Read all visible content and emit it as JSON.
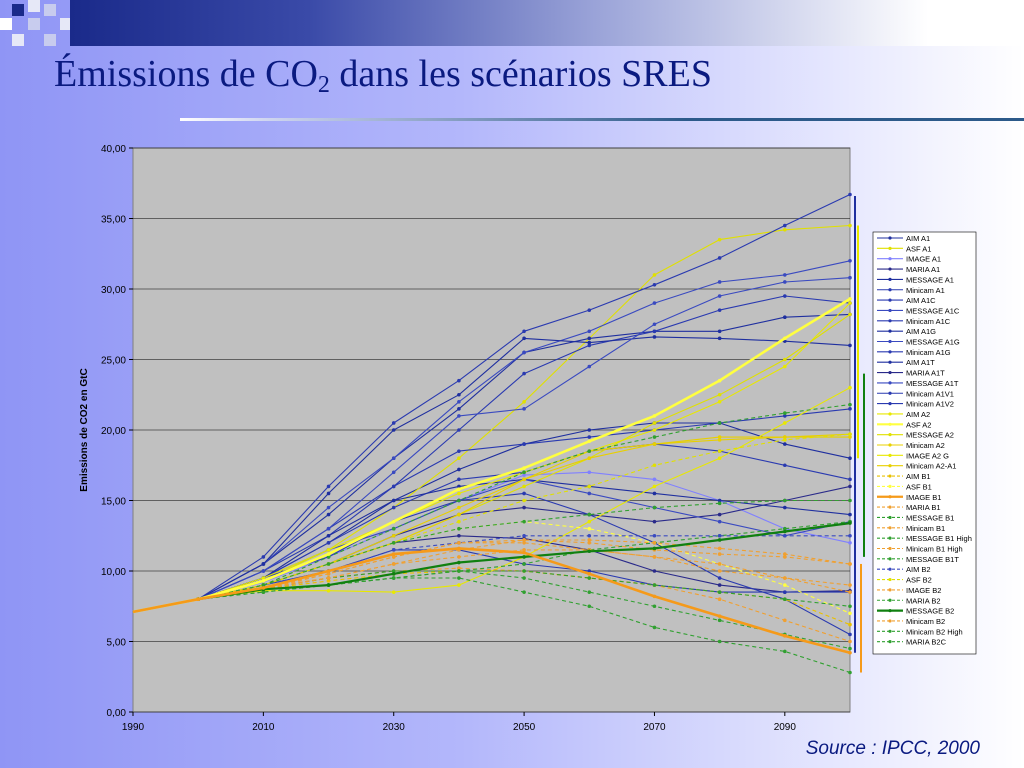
{
  "slide": {
    "title_main": "Émissions de CO",
    "title_sub": "2",
    "title_rest": " dans les scénarios SRES",
    "source": "Source : IPCC, 2000"
  },
  "chart_data": {
    "type": "line",
    "title": "",
    "xlabel": "",
    "ylabel": "Emissions de CO2 en GtC",
    "xlim": [
      1990,
      2100
    ],
    "ylim": [
      0,
      40
    ],
    "x_ticks": [
      "1990",
      "2010",
      "2030",
      "2050",
      "2070",
      "2090"
    ],
    "y_ticks": [
      "0,00",
      "5,00",
      "10,00",
      "15,00",
      "20,00",
      "25,00",
      "30,00",
      "35,00",
      "40,00"
    ],
    "x": [
      1990,
      2000,
      2010,
      2020,
      2030,
      2040,
      2050,
      2060,
      2070,
      2080,
      2090,
      2100
    ],
    "grid": true,
    "legend_position": "right",
    "plot_background": "#c0c0c0",
    "series": [
      {
        "name": "AIM A1",
        "color": "#1f2f9f",
        "dash": "",
        "width": 1.1,
        "values": [
          7.1,
          8.0,
          9.5,
          12.0,
          15.0,
          17.2,
          19.0,
          20.0,
          20.5,
          20.5,
          19.0,
          18.0
        ]
      },
      {
        "name": "ASF A1",
        "color": "#e0e000",
        "dash": "",
        "width": 1.1,
        "values": [
          7.1,
          8.0,
          9.3,
          11.5,
          14.5,
          18.0,
          22.0,
          26.5,
          31.0,
          33.5,
          34.2,
          34.5
        ]
      },
      {
        "name": "IMAGE A1",
        "color": "#8080ff",
        "dash": "",
        "width": 1.1,
        "values": [
          7.1,
          8.0,
          9.2,
          11.0,
          13.0,
          15.0,
          16.8,
          17.0,
          16.5,
          15.0,
          13.0,
          12.0
        ]
      },
      {
        "name": "MARIA A1",
        "color": "#2a2a8a",
        "dash": "",
        "width": 1.1,
        "values": [
          7.1,
          8.0,
          9.0,
          10.5,
          12.5,
          14.0,
          14.5,
          14.0,
          13.5,
          14.0,
          15.0,
          16.0
        ]
      },
      {
        "name": "MESSAGE A1",
        "color": "#1f2f9f",
        "dash": "",
        "width": 1.1,
        "values": [
          7.1,
          8.0,
          10.5,
          14.0,
          18.0,
          21.5,
          25.5,
          26.5,
          27.0,
          27.0,
          28.0,
          28.2
        ]
      },
      {
        "name": "Minicam A1",
        "color": "#2a3ab0",
        "dash": "",
        "width": 1.1,
        "values": [
          7.1,
          8.0,
          10.0,
          13.0,
          16.0,
          18.5,
          19.0,
          19.5,
          20.0,
          20.5,
          21.0,
          21.5
        ]
      },
      {
        "name": "AIM A1C",
        "color": "#2a3ab0",
        "dash": "",
        "width": 1.1,
        "values": [
          7.1,
          8.0,
          11.0,
          16.0,
          20.5,
          23.5,
          27.0,
          28.5,
          30.3,
          32.2,
          34.5,
          36.7
        ]
      },
      {
        "name": "MESSAGE A1C",
        "color": "#3a4ac0",
        "dash": "",
        "width": 1.1,
        "values": [
          7.1,
          8.0,
          10.5,
          14.5,
          18.0,
          22.0,
          25.5,
          27.0,
          29.0,
          30.5,
          31.0,
          32.0
        ]
      },
      {
        "name": "Minicam A1C",
        "color": "#2a3ab0",
        "dash": "",
        "width": 1.1,
        "values": [
          7.1,
          8.0,
          10.0,
          12.5,
          16.0,
          20.0,
          24.0,
          26.0,
          27.0,
          28.5,
          29.5,
          29.0
        ]
      },
      {
        "name": "AIM A1G",
        "color": "#1f2f9f",
        "dash": "",
        "width": 1.1,
        "values": [
          7.1,
          8.0,
          10.5,
          15.5,
          20.0,
          22.5,
          26.5,
          26.2,
          26.6,
          26.5,
          26.3,
          26.0
        ]
      },
      {
        "name": "MESSAGE A1G",
        "color": "#3a4ac0",
        "dash": "",
        "width": 1.1,
        "values": [
          7.1,
          8.0,
          10.0,
          13.0,
          17.0,
          21.0,
          21.5,
          24.5,
          27.5,
          29.5,
          30.5,
          30.8
        ]
      },
      {
        "name": "Minicam A1G",
        "color": "#2a3ab0",
        "dash": "",
        "width": 1.1,
        "values": [
          7.1,
          8.0,
          9.5,
          12.0,
          14.5,
          16.5,
          17.0,
          18.5,
          19.0,
          18.5,
          17.5,
          16.5
        ]
      },
      {
        "name": "AIM A1T",
        "color": "#1f2f9f",
        "dash": "",
        "width": 1.1,
        "values": [
          7.1,
          8.0,
          9.5,
          12.5,
          15.0,
          16.0,
          16.5,
          16.0,
          15.5,
          15.0,
          14.5,
          14.0
        ]
      },
      {
        "name": "MARIA A1T",
        "color": "#2a2a8a",
        "dash": "",
        "width": 1.1,
        "values": [
          7.1,
          8.0,
          9.0,
          10.5,
          12.0,
          12.5,
          12.3,
          11.5,
          10.0,
          9.0,
          8.5,
          8.6
        ]
      },
      {
        "name": "MESSAGE A1T",
        "color": "#3a4ac0",
        "dash": "",
        "width": 1.1,
        "values": [
          7.1,
          8.0,
          9.5,
          11.5,
          13.0,
          15.0,
          16.5,
          15.5,
          14.5,
          13.5,
          12.5,
          13.5
        ]
      },
      {
        "name": "Minicam A1V1",
        "color": "#2a3ab0",
        "dash": "",
        "width": 1.1,
        "values": [
          7.1,
          8.0,
          9.5,
          11.0,
          13.5,
          15.0,
          15.5,
          14.0,
          12.0,
          9.5,
          8.0,
          5.5
        ]
      },
      {
        "name": "Minicam A1V2",
        "color": "#2a3ab0",
        "dash": "",
        "width": 1.1,
        "values": [
          7.1,
          8.0,
          9.0,
          10.0,
          11.5,
          11.5,
          10.5,
          10.0,
          9.0,
          8.5,
          8.5,
          8.5
        ]
      },
      {
        "name": "AIM A2",
        "color": "#e8e800",
        "dash": "",
        "width": 1.1,
        "values": [
          7.1,
          8.0,
          9.5,
          11.5,
          13.5,
          15.5,
          17.0,
          18.5,
          20.0,
          22.0,
          24.5,
          29.0
        ]
      },
      {
        "name": "ASF A2",
        "color": "#ffff40",
        "dash": "",
        "width": 2.6,
        "values": [
          7.1,
          8.0,
          9.3,
          11.2,
          13.5,
          15.8,
          17.3,
          19.2,
          21.0,
          23.5,
          26.5,
          29.3
        ]
      },
      {
        "name": "MESSAGE A2",
        "color": "#e0e000",
        "dash": "",
        "width": 1.1,
        "values": [
          7.1,
          8.0,
          9.0,
          10.5,
          12.0,
          14.0,
          16.0,
          18.0,
          20.5,
          22.5,
          25.0,
          28.2
        ]
      },
      {
        "name": "Minicam A2",
        "color": "#e8d000",
        "dash": "",
        "width": 1.1,
        "values": [
          7.1,
          8.0,
          9.0,
          10.5,
          12.5,
          14.5,
          16.5,
          18.5,
          19.0,
          19.3,
          19.5,
          19.7
        ]
      },
      {
        "name": "IMAGE A2 G",
        "color": "#e8e800",
        "dash": "",
        "width": 1.1,
        "values": [
          7.1,
          8.0,
          8.6,
          8.6,
          8.5,
          9.0,
          11.0,
          13.5,
          16.0,
          18.0,
          20.5,
          23.0
        ]
      },
      {
        "name": "Minicam A2-A1",
        "color": "#e8d000",
        "dash": "",
        "width": 1.1,
        "values": [
          7.1,
          8.0,
          9.0,
          10.5,
          12.0,
          14.0,
          16.5,
          18.0,
          19.0,
          19.5,
          19.5,
          19.5
        ]
      },
      {
        "name": "AIM B1",
        "color": "#e8c000",
        "dash": "4,3",
        "width": 1.1,
        "values": [
          7.1,
          8.0,
          8.7,
          9.3,
          9.8,
          10.0,
          10.0,
          9.5,
          9.0,
          8.5,
          8.0,
          6.2
        ]
      },
      {
        "name": "ASF B1",
        "color": "#ffff40",
        "dash": "4,3",
        "width": 1.1,
        "values": [
          7.1,
          8.0,
          9.0,
          10.5,
          12.0,
          13.0,
          13.5,
          13.0,
          12.0,
          10.5,
          9.0,
          7.0
        ]
      },
      {
        "name": "IMAGE B1",
        "color": "#f59a1a",
        "dash": "",
        "width": 2.6,
        "values": [
          7.1,
          8.0,
          8.8,
          10.0,
          11.2,
          11.6,
          11.3,
          9.8,
          8.2,
          6.8,
          5.4,
          4.2
        ]
      },
      {
        "name": "MARIA B1",
        "color": "#f0a030",
        "dash": "4,3",
        "width": 1.1,
        "values": [
          7.1,
          8.0,
          8.8,
          9.5,
          10.0,
          10.2,
          10.0,
          9.5,
          9.0,
          8.0,
          6.5,
          5.0
        ]
      },
      {
        "name": "MESSAGE B1",
        "color": "#30a030",
        "dash": "4,3",
        "width": 1.1,
        "values": [
          7.1,
          8.0,
          8.7,
          9.5,
          10.0,
          10.0,
          9.5,
          8.5,
          7.5,
          6.5,
          5.5,
          4.5
        ]
      },
      {
        "name": "Minicam B1",
        "color": "#f0a030",
        "dash": "4,3",
        "width": 1.1,
        "values": [
          7.1,
          8.0,
          8.8,
          9.8,
          11.0,
          12.0,
          12.0,
          11.5,
          11.0,
          10.0,
          9.5,
          9.0
        ]
      },
      {
        "name": "MESSAGE B1 High",
        "color": "#30a030",
        "dash": "4,3",
        "width": 1.1,
        "values": [
          7.1,
          8.0,
          8.5,
          9.0,
          9.5,
          10.0,
          10.5,
          11.5,
          12.0,
          12.5,
          13.0,
          13.5
        ]
      },
      {
        "name": "Minicam B1 High",
        "color": "#f0a030",
        "dash": "4,3",
        "width": 1.1,
        "values": [
          7.1,
          8.0,
          8.7,
          9.5,
          10.5,
          11.5,
          12.2,
          12.2,
          12.0,
          11.6,
          11.2,
          10.5
        ]
      },
      {
        "name": "MESSAGE B1T",
        "color": "#30a030",
        "dash": "4,3",
        "width": 1.1,
        "values": [
          7.1,
          8.0,
          8.7,
          9.0,
          9.5,
          9.5,
          8.5,
          7.5,
          6.0,
          5.0,
          4.3,
          2.8
        ]
      },
      {
        "name": "AIM B2",
        "color": "#3a4ac0",
        "dash": "4,3",
        "width": 1.1,
        "values": [
          7.1,
          8.0,
          9.0,
          10.0,
          11.5,
          12.0,
          12.5,
          12.5,
          12.5,
          12.5,
          12.5,
          12.5
        ]
      },
      {
        "name": "ASF B2",
        "color": "#e0e000",
        "dash": "4,3",
        "width": 1.1,
        "values": [
          7.1,
          8.0,
          9.0,
          10.5,
          12.0,
          13.5,
          15.0,
          16.0,
          17.5,
          18.5,
          19.3,
          19.7
        ]
      },
      {
        "name": "IMAGE B2",
        "color": "#f0a030",
        "dash": "4,3",
        "width": 1.1,
        "values": [
          7.1,
          8.0,
          8.8,
          9.5,
          10.5,
          11.0,
          11.5,
          11.5,
          11.0,
          10.5,
          9.5,
          8.5
        ]
      },
      {
        "name": "MARIA B2",
        "color": "#30a030",
        "dash": "4,3",
        "width": 1.1,
        "values": [
          7.1,
          8.0,
          8.5,
          9.0,
          9.5,
          10.0,
          10.0,
          9.5,
          9.0,
          8.5,
          8.0,
          7.5
        ]
      },
      {
        "name": "MESSAGE B2",
        "color": "#108010",
        "dash": "",
        "width": 2.2,
        "values": [
          7.1,
          8.0,
          8.7,
          9.0,
          9.8,
          10.6,
          11.0,
          11.4,
          11.6,
          12.2,
          12.8,
          13.4
        ]
      },
      {
        "name": "Minicam B2",
        "color": "#f0a030",
        "dash": "4,3",
        "width": 1.1,
        "values": [
          7.1,
          8.0,
          8.7,
          9.8,
          11.0,
          12.0,
          12.2,
          12.0,
          11.5,
          11.2,
          11.0,
          10.5
        ]
      },
      {
        "name": "Minicam B2 High",
        "color": "#30a030",
        "dash": "4,3",
        "width": 1.1,
        "values": [
          7.1,
          8.0,
          9.0,
          10.5,
          12.0,
          13.0,
          13.5,
          14.0,
          14.5,
          14.8,
          15.0,
          15.0
        ]
      },
      {
        "name": "MARIA B2C",
        "color": "#30a030",
        "dash": "4,3",
        "width": 1.1,
        "values": [
          7.1,
          8.0,
          9.0,
          11.0,
          13.0,
          15.0,
          17.0,
          18.5,
          19.5,
          20.5,
          21.2,
          21.8
        ]
      }
    ],
    "range_bars": [
      {
        "group": "A1",
        "color": "#1f2f9f",
        "ymin": 4.2,
        "ymax": 36.6
      },
      {
        "group": "A2",
        "color": "#e8e800",
        "ymin": 18.0,
        "ymax": 34.5
      },
      {
        "group": "B1",
        "color": "#f59a1a",
        "ymin": 2.8,
        "ymax": 10.5
      },
      {
        "group": "B2",
        "color": "#108010",
        "ymin": 11.0,
        "ymax": 24.0
      }
    ]
  }
}
